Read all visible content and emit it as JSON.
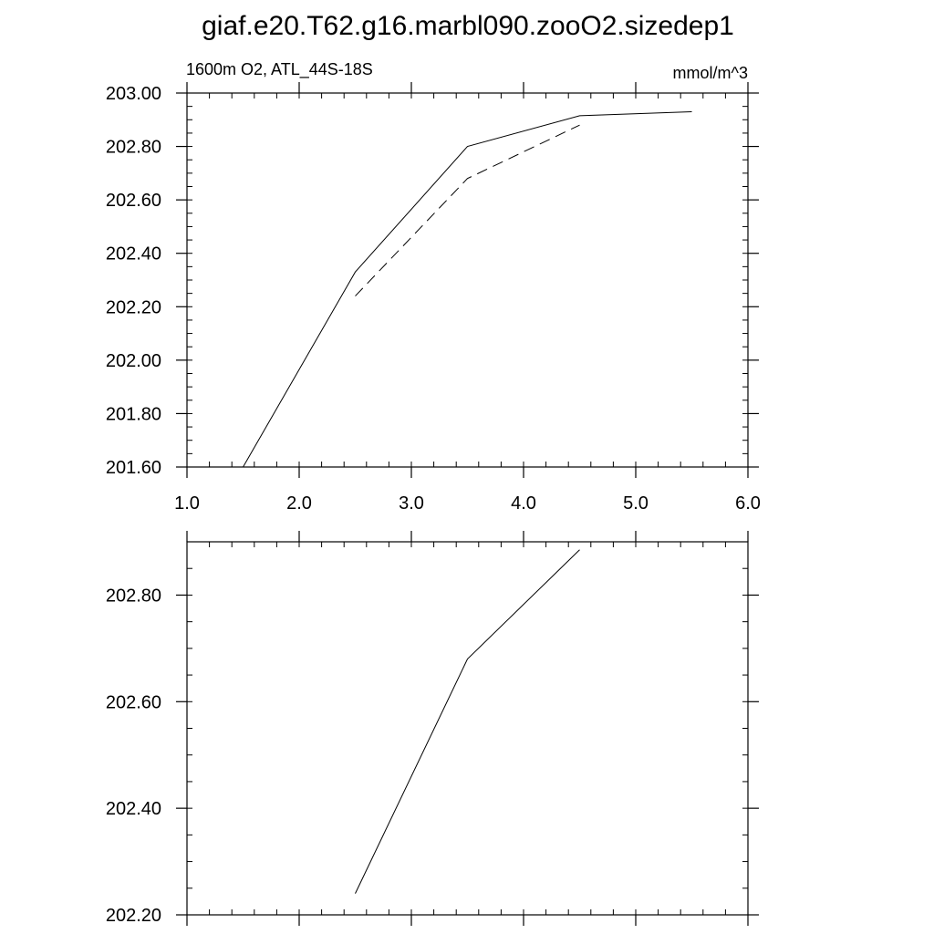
{
  "title": "giaf.e20.T62.g16.marbl090.zooO2.sizedep1",
  "chart_data": [
    {
      "type": "line",
      "left_label": "1600m O2, ATL_44S-18S",
      "right_label": "mmol/m^3",
      "xlim": [
        1.0,
        6.0
      ],
      "ylim": [
        201.6,
        203.0
      ],
      "x_ticks": [
        "1.0",
        "2.0",
        "3.0",
        "4.0",
        "5.0",
        "6.0"
      ],
      "y_ticks": [
        "201.60",
        "201.80",
        "202.00",
        "202.20",
        "202.40",
        "202.60",
        "202.80",
        "203.00"
      ],
      "series": [
        {
          "style": "solid",
          "x": [
            1.5,
            2.5,
            3.5,
            4.5,
            5.5
          ],
          "y": [
            201.6,
            202.33,
            202.8,
            202.915,
            202.93
          ]
        },
        {
          "style": "dashed",
          "x": [
            2.5,
            3.5,
            4.5
          ],
          "y": [
            202.24,
            202.68,
            202.88
          ]
        }
      ]
    },
    {
      "type": "line",
      "xlim": [
        1.0,
        6.0
      ],
      "ylim": [
        202.2,
        202.9
      ],
      "y_ticks": [
        "202.20",
        "202.40",
        "202.60",
        "202.80"
      ],
      "series": [
        {
          "style": "solid",
          "x": [
            2.5,
            3.5,
            4.5
          ],
          "y": [
            202.24,
            202.68,
            202.885
          ]
        }
      ]
    }
  ]
}
